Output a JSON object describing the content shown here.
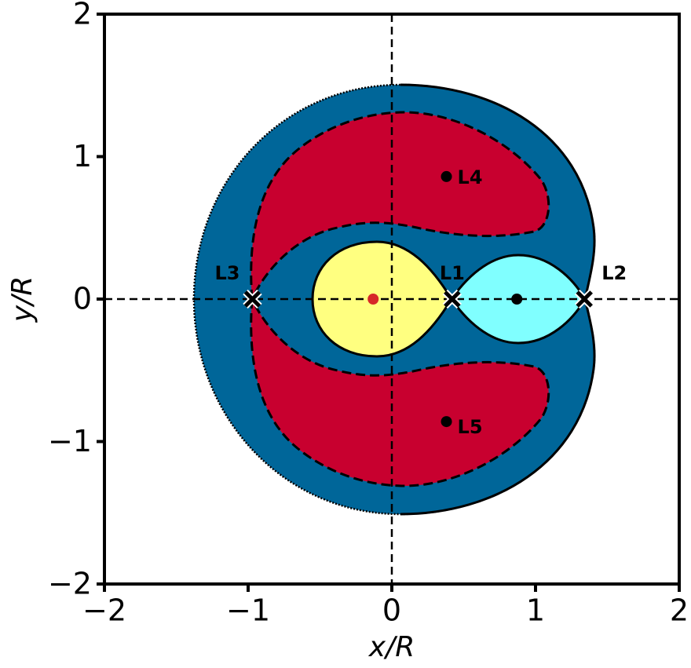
{
  "chart_data": {
    "type": "scatter",
    "xlabel": "x/R",
    "ylabel": "y/R",
    "xlim": [
      -2,
      2
    ],
    "ylim": [
      -2,
      2
    ],
    "xticks": [
      {
        "value": -2,
        "label": "−2"
      },
      {
        "value": -1,
        "label": "−1"
      },
      0,
      1,
      2
    ],
    "yticks": [
      {
        "value": -2,
        "label": "−2"
      },
      {
        "value": -1,
        "label": "−1"
      },
      0,
      1,
      2
    ],
    "lagrange_points": {
      "labels": [
        "L1",
        "L2",
        "L3",
        "L4",
        "L5"
      ],
      "x": [
        0.42,
        1.34,
        -0.97,
        0.38,
        0.38
      ],
      "y": [
        0,
        0,
        0,
        0.86,
        -0.86
      ],
      "markers": [
        "x",
        "x",
        "x",
        "o",
        "o"
      ],
      "color": "#000000"
    },
    "bodies": {
      "x": [
        -0.13,
        0.87
      ],
      "y": [
        0,
        0
      ],
      "colors": [
        "#d62728",
        "#000000"
      ]
    }
  }
}
